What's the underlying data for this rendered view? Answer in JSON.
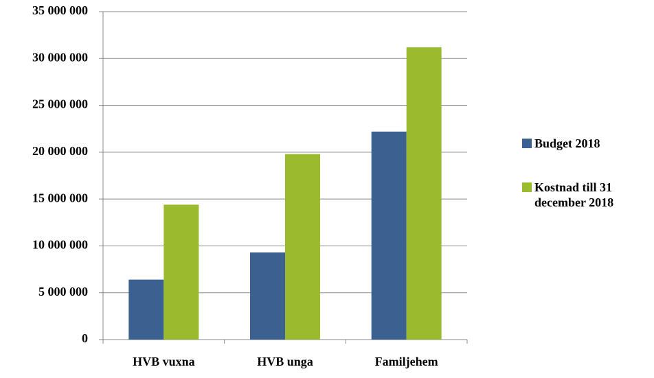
{
  "chart_data": {
    "type": "bar",
    "categories": [
      "HVB vuxna",
      "HVB unga",
      "Familjehem"
    ],
    "series": [
      {
        "name": "Budget 2018",
        "color": "#3a6190",
        "values": [
          6400000,
          9300000,
          22200000
        ]
      },
      {
        "name": "Kostnad till 31 december 2018",
        "color": "#9bbb2e",
        "values": [
          14400000,
          19800000,
          31200000
        ]
      }
    ],
    "ylim": [
      0,
      35000000
    ],
    "yticks": [
      {
        "value": 0,
        "label": "0"
      },
      {
        "value": 5000000,
        "label": "5 000 000"
      },
      {
        "value": 10000000,
        "label": "10 000 000"
      },
      {
        "value": 15000000,
        "label": "15 000 000"
      },
      {
        "value": 20000000,
        "label": "20 000 000"
      },
      {
        "value": 25000000,
        "label": "25 000 000"
      },
      {
        "value": 30000000,
        "label": "30 000 000"
      },
      {
        "value": 35000000,
        "label": "35 000 000"
      }
    ],
    "grid": true,
    "legend": "right"
  }
}
